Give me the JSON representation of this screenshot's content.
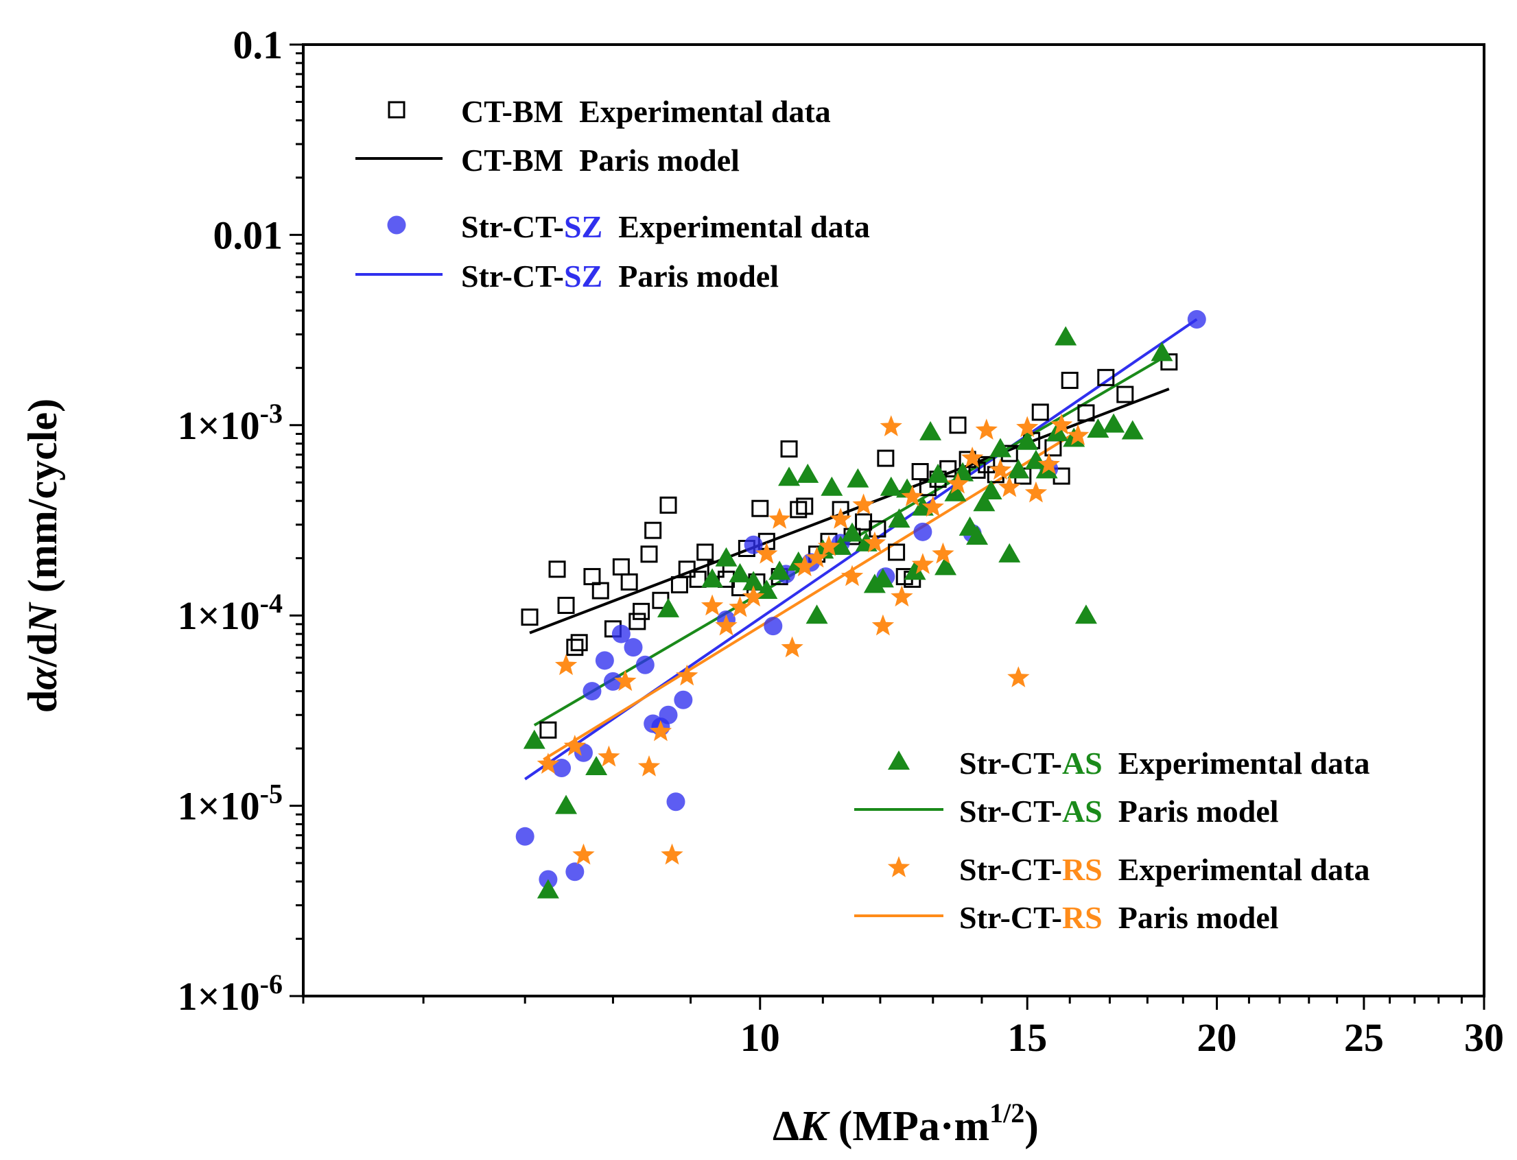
{
  "chart_data": {
    "type": "scatter",
    "title": "",
    "xlabel_delta": "Δ",
    "xlabel_var": "K",
    "xlabel_units": " (MPa·m",
    "xlabel_exp": "1/2",
    "xlabel_close": ")",
    "ylabel_pre": "d",
    "ylabel_a": "α",
    "ylabel_mid": "/d",
    "ylabel_N": "N",
    "ylabel_units": " (mm/cycle)",
    "x_scale": "log",
    "y_scale": "log",
    "xlim": [
      5,
      30
    ],
    "ylim": [
      1e-06,
      0.1
    ],
    "x_ticks": [
      {
        "value": 10,
        "label": "10"
      },
      {
        "value": 15,
        "label": "15"
      },
      {
        "value": 20,
        "label": "20"
      },
      {
        "value": 25,
        "label": "25"
      },
      {
        "value": 30,
        "label": "30"
      }
    ],
    "y_ticks": [
      {
        "value": 0.1,
        "label": "0.1",
        "sci": false
      },
      {
        "value": 0.01,
        "label": "0.01",
        "sci": false
      },
      {
        "value": 0.001,
        "mant": "1×10",
        "exp": "-3",
        "sci": true
      },
      {
        "value": 0.0001,
        "mant": "1×10",
        "exp": "-4",
        "sci": true
      },
      {
        "value": 1e-05,
        "mant": "1×10",
        "exp": "-5",
        "sci": true
      },
      {
        "value": 1e-06,
        "mant": "1×10",
        "exp": "-6",
        "sci": true
      }
    ],
    "legend": [
      {
        "id": "bm",
        "prefix": "CT-BM",
        "highlight": "",
        "label": "Experimental data",
        "kind": "marker",
        "marker": "square",
        "color": "#000000",
        "hl_color": "#000000",
        "position": "top-left"
      },
      {
        "id": "bm",
        "prefix": "CT-BM",
        "highlight": "",
        "label": "Paris model",
        "kind": "line",
        "color": "#000000",
        "hl_color": "#000000",
        "position": "top-left"
      },
      {
        "id": "sz",
        "prefix": "Str-CT-",
        "highlight": "SZ",
        "label": "Experimental data",
        "kind": "marker",
        "marker": "circle",
        "color": "#3030ee",
        "hl_color": "#3030ee",
        "position": "top-left"
      },
      {
        "id": "sz",
        "prefix": "Str-CT-",
        "highlight": "SZ",
        "label": "Paris model",
        "kind": "line",
        "color": "#3030ee",
        "hl_color": "#3030ee",
        "position": "top-left"
      },
      {
        "id": "as",
        "prefix": "Str-CT-",
        "highlight": "AS",
        "label": "Experimental data",
        "kind": "marker",
        "marker": "triangle",
        "color": "#1a8a1a",
        "hl_color": "#1a8a1a",
        "position": "bottom-right"
      },
      {
        "id": "as",
        "prefix": "Str-CT-",
        "highlight": "AS",
        "label": "Paris model",
        "kind": "line",
        "color": "#1a8a1a",
        "hl_color": "#1a8a1a",
        "position": "bottom-right"
      },
      {
        "id": "rs",
        "prefix": "Str-CT-",
        "highlight": "RS",
        "label": "Experimental data",
        "kind": "marker",
        "marker": "star",
        "color": "#ff8c1a",
        "hl_color": "#ff8c1a",
        "position": "bottom-right"
      },
      {
        "id": "rs",
        "prefix": "Str-CT-",
        "highlight": "RS",
        "label": "Paris model",
        "kind": "line",
        "color": "#ff8c1a",
        "hl_color": "#ff8c1a",
        "position": "bottom-right"
      }
    ],
    "series": [
      {
        "id": "bm",
        "name": "CT-BM Experimental data",
        "marker": "square",
        "color": "#000000",
        "fit": {
          "x": [
            7.05,
            18.6
          ],
          "y": [
            8.1e-05,
            0.00155
          ]
        },
        "points": [
          [
            7.05,
            9.8e-05
          ],
          [
            7.25,
            2.5e-05
          ],
          [
            7.35,
            0.000175
          ],
          [
            7.45,
            0.000113
          ],
          [
            7.55,
            6.8e-05
          ],
          [
            7.6,
            7.2e-05
          ],
          [
            7.75,
            0.00016
          ],
          [
            7.85,
            0.000135
          ],
          [
            8.0,
            8.5e-05
          ],
          [
            8.1,
            0.00018
          ],
          [
            8.2,
            0.00015
          ],
          [
            8.3,
            9.3e-05
          ],
          [
            8.35,
            0.000105
          ],
          [
            8.45,
            0.00021
          ],
          [
            8.5,
            0.00028
          ],
          [
            8.6,
            0.00012
          ],
          [
            8.7,
            0.00038
          ],
          [
            8.85,
            0.000145
          ],
          [
            8.95,
            0.000175
          ],
          [
            9.1,
            0.000155
          ],
          [
            9.2,
            0.000215
          ],
          [
            9.35,
            0.000175
          ],
          [
            9.5,
            0.000155
          ],
          [
            9.7,
            0.00014
          ],
          [
            9.8,
            0.000225
          ],
          [
            9.95,
            0.00015
          ],
          [
            10.0,
            0.000365
          ],
          [
            10.1,
            0.000245
          ],
          [
            10.3,
            0.00016
          ],
          [
            10.45,
            0.00075
          ],
          [
            10.6,
            0.00036
          ],
          [
            10.7,
            0.000375
          ],
          [
            10.9,
            0.00021
          ],
          [
            11.1,
            0.000245
          ],
          [
            11.3,
            0.00036
          ],
          [
            11.5,
            0.00026
          ],
          [
            11.7,
            0.00031
          ],
          [
            11.95,
            0.000285
          ],
          [
            12.1,
            0.00067
          ],
          [
            12.3,
            0.000215
          ],
          [
            12.45,
            0.00016
          ],
          [
            12.6,
            0.000155
          ],
          [
            12.75,
            0.00057
          ],
          [
            12.9,
            0.00047
          ],
          [
            13.1,
            0.00052
          ],
          [
            13.3,
            0.00059
          ],
          [
            13.5,
            0.001
          ],
          [
            13.7,
            0.00066
          ],
          [
            13.9,
            0.00058
          ],
          [
            14.1,
            0.00062
          ],
          [
            14.3,
            0.00055
          ],
          [
            14.6,
            0.00071
          ],
          [
            14.9,
            0.00054
          ],
          [
            15.1,
            0.00083
          ],
          [
            15.3,
            0.00117
          ],
          [
            15.6,
            0.00076
          ],
          [
            15.8,
            0.00054
          ],
          [
            16.0,
            0.00172
          ],
          [
            16.4,
            0.00116
          ],
          [
            16.9,
            0.00178
          ],
          [
            17.4,
            0.00145
          ],
          [
            18.6,
            0.00215
          ]
        ]
      },
      {
        "id": "sz",
        "name": "Str-CT-SZ Experimental data",
        "marker": "circle",
        "color": "#3030ee",
        "fit": {
          "x": [
            7.0,
            19.4
          ],
          "y": [
            1.38e-05,
            0.0036
          ]
        },
        "points": [
          [
            7.0,
            6.9e-06
          ],
          [
            7.25,
            4.1e-06
          ],
          [
            7.4,
            1.58e-05
          ],
          [
            7.55,
            4.5e-06
          ],
          [
            7.65,
            1.9e-05
          ],
          [
            7.75,
            4e-05
          ],
          [
            7.9,
            5.8e-05
          ],
          [
            8.0,
            4.5e-05
          ],
          [
            8.1,
            8e-05
          ],
          [
            8.25,
            6.8e-05
          ],
          [
            8.4,
            5.5e-05
          ],
          [
            8.5,
            2.7e-05
          ],
          [
            8.6,
            2.6e-05
          ],
          [
            8.7,
            3e-05
          ],
          [
            8.8,
            1.05e-05
          ],
          [
            8.9,
            3.6e-05
          ],
          [
            9.5,
            9.5e-05
          ],
          [
            9.9,
            0.000235
          ],
          [
            10.2,
            8.8e-05
          ],
          [
            10.4,
            0.000165
          ],
          [
            10.8,
            0.00019
          ],
          [
            11.3,
            0.00024
          ],
          [
            12.1,
            0.00016
          ],
          [
            12.8,
            0.000275
          ],
          [
            13.8,
            0.00027
          ],
          [
            15.5,
            0.00059
          ],
          [
            19.4,
            0.0036
          ]
        ]
      },
      {
        "id": "as",
        "name": "Str-CT-AS Experimental data",
        "marker": "triangle",
        "color": "#1a8a1a",
        "fit": {
          "x": [
            7.1,
            18.5
          ],
          "y": [
            2.65e-05,
            0.0023
          ]
        },
        "points": [
          [
            7.1,
            2.2e-05
          ],
          [
            7.25,
            3.6e-06
          ],
          [
            7.45,
            1e-05
          ],
          [
            7.8,
            1.6e-05
          ],
          [
            8.7,
            0.000108
          ],
          [
            9.3,
            0.000155
          ],
          [
            9.5,
            0.0002
          ],
          [
            9.7,
            0.000165
          ],
          [
            9.9,
            0.00015
          ],
          [
            10.1,
            0.000135
          ],
          [
            10.3,
            0.00017
          ],
          [
            10.45,
            0.00053
          ],
          [
            10.6,
            0.00019
          ],
          [
            10.75,
            0.00055
          ],
          [
            10.9,
            0.0001
          ],
          [
            11.0,
            0.00022
          ],
          [
            11.15,
            0.00047
          ],
          [
            11.3,
            0.00023
          ],
          [
            11.5,
            0.00027
          ],
          [
            11.6,
            0.00052
          ],
          [
            11.75,
            0.00024
          ],
          [
            11.9,
            0.000145
          ],
          [
            12.05,
            0.000155
          ],
          [
            12.2,
            0.00047
          ],
          [
            12.35,
            0.00032
          ],
          [
            12.5,
            0.00046
          ],
          [
            12.65,
            0.00017
          ],
          [
            12.8,
            0.00037
          ],
          [
            12.95,
            0.00092
          ],
          [
            13.1,
            0.00055
          ],
          [
            13.25,
            0.00018
          ],
          [
            13.45,
            0.00044
          ],
          [
            13.6,
            0.00056
          ],
          [
            13.75,
            0.00029
          ],
          [
            13.9,
            0.00026
          ],
          [
            14.05,
            0.00039
          ],
          [
            14.2,
            0.00045
          ],
          [
            14.4,
            0.00075
          ],
          [
            14.6,
            0.00021
          ],
          [
            14.8,
            0.00058
          ],
          [
            15.0,
            0.00082
          ],
          [
            15.2,
            0.00065
          ],
          [
            15.45,
            0.00058
          ],
          [
            15.7,
            0.00091
          ],
          [
            15.9,
            0.0029
          ],
          [
            16.1,
            0.00085
          ],
          [
            16.4,
            0.0001
          ],
          [
            16.7,
            0.00095
          ],
          [
            17.1,
            0.00101
          ],
          [
            17.6,
            0.00093
          ],
          [
            18.4,
            0.0024
          ]
        ]
      },
      {
        "id": "rs",
        "name": "Str-CT-RS Experimental data",
        "marker": "star",
        "color": "#ff8c1a",
        "fit": {
          "x": [
            7.2,
            16.2
          ],
          "y": [
            1.75e-05,
            0.00093
          ]
        },
        "points": [
          [
            7.25,
            1.65e-05
          ],
          [
            7.45,
            5.45e-05
          ],
          [
            7.55,
            2.05e-05
          ],
          [
            7.65,
            5.5e-06
          ],
          [
            7.95,
            1.8e-05
          ],
          [
            8.15,
            4.5e-05
          ],
          [
            8.45,
            1.6e-05
          ],
          [
            8.6,
            2.45e-05
          ],
          [
            8.75,
            5.5e-06
          ],
          [
            8.95,
            4.8e-05
          ],
          [
            9.3,
            0.000112
          ],
          [
            9.5,
            8.8e-05
          ],
          [
            9.7,
            0.00011
          ],
          [
            9.9,
            0.000125
          ],
          [
            10.1,
            0.00021
          ],
          [
            10.3,
            0.00032
          ],
          [
            10.5,
            6.75e-05
          ],
          [
            10.7,
            0.00018
          ],
          [
            10.9,
            0.0002
          ],
          [
            11.1,
            0.00023
          ],
          [
            11.3,
            0.00032
          ],
          [
            11.5,
            0.00016
          ],
          [
            11.7,
            0.00038
          ],
          [
            11.9,
            0.00024
          ],
          [
            12.05,
            8.8e-05
          ],
          [
            12.2,
            0.00098
          ],
          [
            12.4,
            0.000125
          ],
          [
            12.6,
            0.00042
          ],
          [
            12.8,
            0.000185
          ],
          [
            13.0,
            0.00037
          ],
          [
            13.2,
            0.00021
          ],
          [
            13.5,
            0.00049
          ],
          [
            13.8,
            0.00067
          ],
          [
            14.1,
            0.00094
          ],
          [
            14.4,
            0.00058
          ],
          [
            14.6,
            0.00047
          ],
          [
            14.8,
            4.7e-05
          ],
          [
            15.0,
            0.00097
          ],
          [
            15.2,
            0.00044
          ],
          [
            15.5,
            0.00062
          ],
          [
            15.8,
            0.001
          ],
          [
            16.2,
            0.00088
          ]
        ]
      }
    ]
  }
}
